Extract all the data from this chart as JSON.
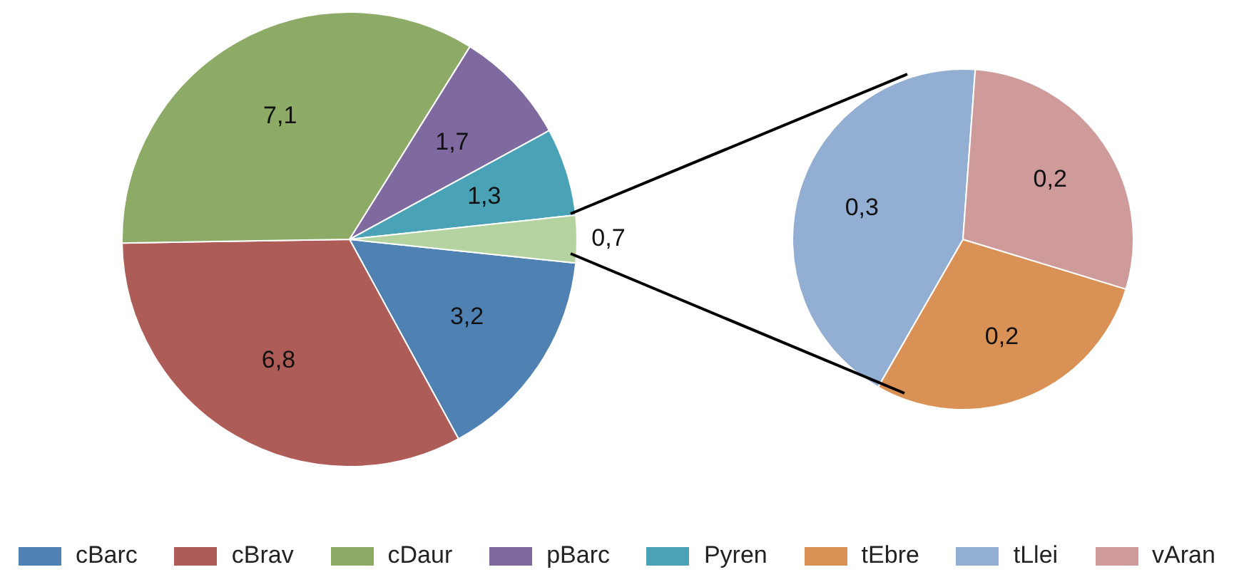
{
  "chart_data": [
    {
      "type": "pie",
      "categories": [
        "cBarc",
        "cBrav",
        "cDaur",
        "pBarc",
        "Pyren",
        null
      ],
      "values": [
        3.2,
        6.8,
        7.1,
        1.7,
        1.3,
        0.7
      ],
      "value_labels": [
        "3,2",
        "6,8",
        "7,1",
        "1,7",
        "1,3",
        "0,7"
      ],
      "colors": [
        "#4f81b3",
        "#ad5c58",
        "#8dab67",
        "#7f6aa0",
        "#4aa2b7",
        "#b5d3a0"
      ],
      "legend": "bottom"
    },
    {
      "type": "pie",
      "categories": [
        "tEbre",
        "tLlei",
        "vAran"
      ],
      "values": [
        0.2,
        0.3,
        0.2
      ],
      "value_labels": [
        "0,2",
        "0,3",
        "0,2"
      ],
      "colors": [
        "#d99155",
        "#93aed3",
        "#cf9a9a"
      ],
      "legend": "bottom"
    }
  ]
}
